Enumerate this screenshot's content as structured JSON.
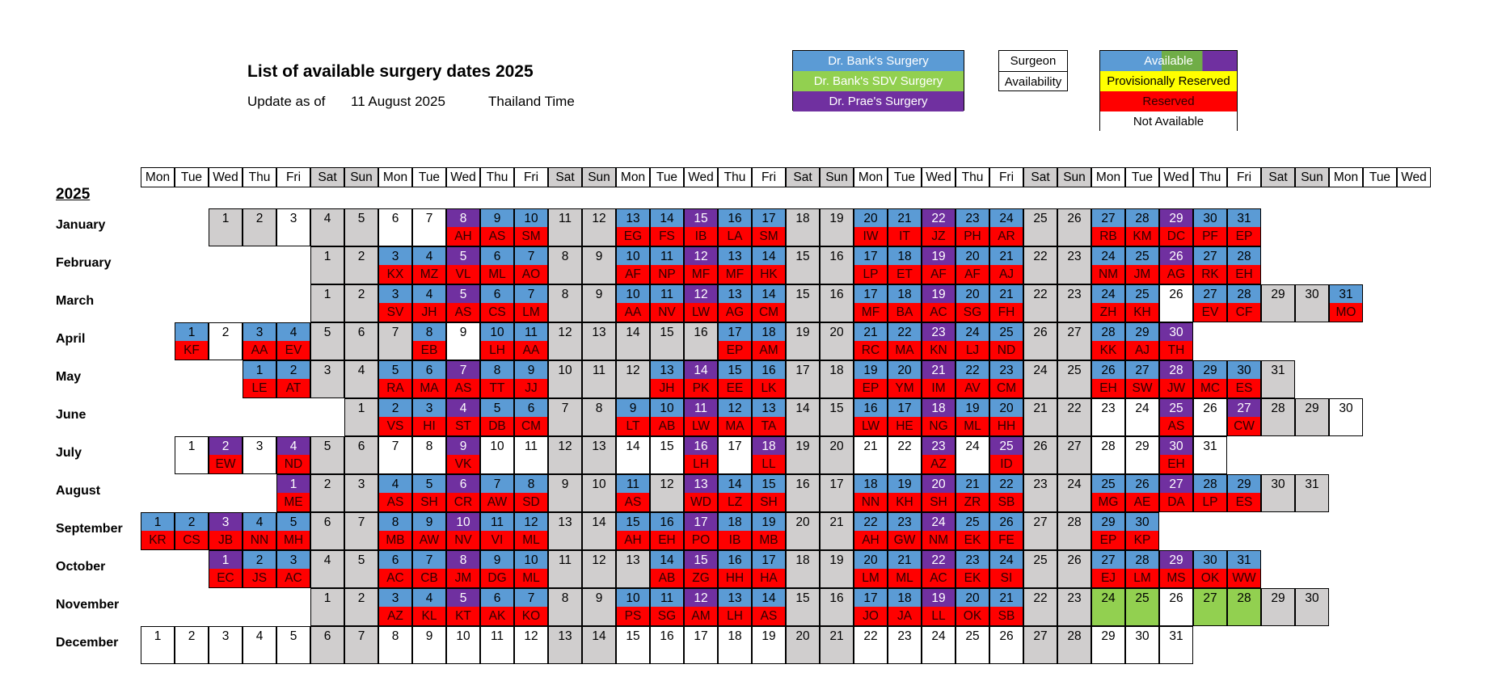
{
  "header": {
    "title": "List of available surgery dates 2025",
    "update_label": "Update as of",
    "update_date": "11 August 2025",
    "timezone": "Thailand Time"
  },
  "legend": {
    "surgeons": [
      "Dr. Bank's Surgery",
      "Dr. Bank's SDV Surgery",
      "Dr. Prae's Surgery"
    ],
    "surgeon_label": "Surgeon",
    "availability_label": "Availability",
    "status": [
      "Available",
      "Provisionally Reserved",
      "Reserved",
      "Not Available"
    ]
  },
  "colors": {
    "bank": "#5b9bd5",
    "sdv": "#92d050",
    "prae": "#7030a0",
    "reserved": "#ff0000",
    "provisional": "#ffff00",
    "not_available": "#d0cece"
  },
  "year": "2025",
  "weekday_header": [
    "Mon",
    "Tue",
    "Wed",
    "Thu",
    "Fri",
    "Sat",
    "Sun",
    "Mon",
    "Tue",
    "Wed",
    "Thu",
    "Fri",
    "Sat",
    "Sun",
    "Mon",
    "Tue",
    "Wed",
    "Thu",
    "Fri",
    "Sat",
    "Sun",
    "Mon",
    "Tue",
    "Wed",
    "Thu",
    "Fri",
    "Sat",
    "Sun",
    "Mon",
    "Tue",
    "Wed",
    "Thu",
    "Fri",
    "Sat",
    "Sun",
    "Mon",
    "Tue",
    "Wed"
  ],
  "months": [
    {
      "name": "January",
      "start": 2,
      "days": 31,
      "surgeon": {
        "8": "P",
        "9": "B",
        "10": "B",
        "13": "B",
        "14": "B",
        "15": "P",
        "16": "B",
        "17": "B",
        "20": "B",
        "21": "B",
        "22": "P",
        "23": "B",
        "24": "B",
        "27": "B",
        "28": "B",
        "29": "P",
        "30": "B",
        "31": "B"
      },
      "bookings": {
        "8": "AH",
        "9": "AS",
        "10": "SM",
        "13": "EG",
        "14": "FS",
        "15": "IB",
        "16": "LA",
        "17": "SM",
        "20": "IW",
        "21": "IT",
        "22": "JZ",
        "23": "PH",
        "24": "AR",
        "27": "RB",
        "28": "KM",
        "29": "DC",
        "30": "PF",
        "31": "EP"
      },
      "grey": [
        1,
        2,
        4,
        5,
        11,
        12,
        18,
        19,
        25,
        26
      ]
    },
    {
      "name": "February",
      "start": 5,
      "days": 28,
      "surgeon": {
        "3": "B",
        "4": "B",
        "5": "P",
        "6": "B",
        "7": "B",
        "10": "B",
        "11": "B",
        "12": "P",
        "13": "B",
        "14": "B",
        "17": "B",
        "18": "B",
        "19": "P",
        "20": "B",
        "21": "B",
        "24": "B",
        "25": "B",
        "26": "P",
        "27": "B",
        "28": "B"
      },
      "bookings": {
        "3": "KX",
        "4": "MZ",
        "5": "VL",
        "6": "ML",
        "7": "AO",
        "10": "AF",
        "11": "NP",
        "12": "MF",
        "13": "MF",
        "14": "HK",
        "17": "LP",
        "18": "ET",
        "19": "AF",
        "20": "AF",
        "21": "AJ",
        "24": "NM",
        "25": "JM",
        "26": "AG",
        "27": "RK",
        "28": "EH"
      },
      "grey": [
        1,
        2,
        8,
        9,
        15,
        16,
        22,
        23
      ]
    },
    {
      "name": "March",
      "start": 5,
      "days": 31,
      "surgeon": {
        "3": "B",
        "4": "B",
        "5": "P",
        "6": "B",
        "7": "B",
        "10": "B",
        "11": "B",
        "12": "P",
        "13": "B",
        "14": "B",
        "17": "B",
        "18": "B",
        "19": "P",
        "20": "B",
        "21": "B",
        "24": "B",
        "25": "B",
        "27": "B",
        "28": "B",
        "31": "B"
      },
      "bookings": {
        "3": "SV",
        "4": "JH",
        "5": "AS",
        "6": "CS",
        "7": "LM",
        "10": "AA",
        "11": "NV",
        "12": "LW",
        "13": "AG",
        "14": "CM",
        "17": "MF",
        "18": "BA",
        "19": "AC",
        "20": "SG",
        "21": "FH",
        "24": "ZH",
        "25": "KH",
        "27": "EV",
        "28": "CF",
        "31": "MO"
      },
      "grey": [
        1,
        2,
        8,
        9,
        15,
        16,
        22,
        23,
        29,
        30
      ]
    },
    {
      "name": "April",
      "start": 1,
      "days": 30,
      "surgeon": {
        "1": "B",
        "3": "B",
        "4": "B",
        "8": "B",
        "10": "B",
        "11": "B",
        "17": "B",
        "18": "B",
        "21": "B",
        "22": "B",
        "23": "P",
        "24": "B",
        "25": "B",
        "28": "B",
        "29": "B",
        "30": "P"
      },
      "bookings": {
        "1": "KF",
        "3": "AA",
        "4": "EV",
        "8": "EB",
        "10": "LH",
        "11": "AA",
        "17": "EP",
        "18": "AM",
        "21": "RC",
        "22": "MA",
        "23": "KN",
        "24": "LJ",
        "25": "ND",
        "28": "KK",
        "29": "AJ",
        "30": "TH"
      },
      "grey": [
        5,
        6,
        7,
        12,
        13,
        14,
        15,
        16,
        19,
        20,
        26,
        27
      ]
    },
    {
      "name": "May",
      "start": 3,
      "days": 31,
      "surgeon": {
        "1": "B",
        "2": "B",
        "5": "B",
        "6": "B",
        "7": "P",
        "8": "B",
        "9": "B",
        "13": "B",
        "14": "P",
        "15": "B",
        "16": "B",
        "19": "B",
        "20": "B",
        "21": "P",
        "22": "B",
        "23": "B",
        "26": "B",
        "27": "B",
        "28": "P",
        "29": "B",
        "30": "B"
      },
      "bookings": {
        "1": "LE",
        "2": "AT",
        "5": "RA",
        "6": "MA",
        "7": "AS",
        "8": "TT",
        "9": "JJ",
        "13": "JH",
        "14": "PK",
        "15": "EE",
        "16": "LK",
        "19": "EP",
        "20": "YM",
        "21": "IM",
        "22": "AV",
        "23": "CM",
        "26": "EH",
        "27": "SW",
        "28": "JW",
        "29": "MC",
        "30": "ES"
      },
      "grey": [
        3,
        4,
        10,
        11,
        12,
        17,
        18,
        24,
        25,
        31
      ]
    },
    {
      "name": "June",
      "start": 6,
      "days": 30,
      "surgeon": {
        "2": "B",
        "3": "B",
        "4": "P",
        "5": "B",
        "6": "B",
        "9": "B",
        "10": "B",
        "11": "P",
        "12": "B",
        "13": "B",
        "16": "B",
        "17": "B",
        "18": "P",
        "19": "B",
        "20": "B",
        "25": "P",
        "27": "P"
      },
      "bookings": {
        "2": "VS",
        "3": "HI",
        "4": "ST",
        "5": "DB",
        "6": "CM",
        "9": "LT",
        "10": "AB",
        "11": "LW",
        "12": "MA",
        "13": "TA",
        "16": "LW",
        "17": "HE",
        "18": "NG",
        "19": "ML",
        "20": "HH",
        "25": "AS",
        "27": "CW"
      },
      "grey": [
        1,
        7,
        8,
        14,
        15,
        21,
        22,
        28,
        29
      ]
    },
    {
      "name": "July",
      "start": 1,
      "days": 31,
      "surgeon": {
        "2": "P",
        "4": "P",
        "9": "P",
        "16": "P",
        "18": "P",
        "23": "P",
        "25": "P",
        "30": "P"
      },
      "bookings": {
        "2": "EW",
        "4": "ND",
        "9": "VK",
        "16": "LH",
        "18": "LL",
        "23": "AZ",
        "25": "ID",
        "30": "EH"
      },
      "grey": [
        5,
        6,
        12,
        13,
        19,
        20,
        26,
        27
      ]
    },
    {
      "name": "August",
      "start": 4,
      "days": 31,
      "surgeon": {
        "1": "P",
        "4": "B",
        "5": "B",
        "6": "P",
        "7": "B",
        "8": "B",
        "11": "B",
        "13": "P",
        "14": "B",
        "15": "B",
        "18": "B",
        "19": "B",
        "20": "P",
        "21": "B",
        "22": "B",
        "25": "B",
        "26": "B",
        "27": "P",
        "28": "B",
        "29": "B"
      },
      "bookings": {
        "1": "ME",
        "4": "AS",
        "5": "SH",
        "6": "CR",
        "7": "AW",
        "8": "SD",
        "11": "AS",
        "13": "WD",
        "14": "LZ",
        "15": "SH",
        "18": "NN",
        "19": "KH",
        "20": "SH",
        "21": "ZR",
        "22": "SB",
        "25": "MG",
        "26": "AE",
        "27": "DA",
        "28": "LP",
        "29": "ES"
      },
      "grey": [
        2,
        3,
        9,
        10,
        12,
        16,
        17,
        23,
        24,
        30,
        31
      ]
    },
    {
      "name": "September",
      "start": 0,
      "days": 30,
      "surgeon": {
        "1": "B",
        "2": "B",
        "3": "P",
        "4": "B",
        "5": "B",
        "8": "B",
        "9": "B",
        "10": "P",
        "11": "B",
        "12": "B",
        "15": "B",
        "16": "B",
        "17": "P",
        "18": "B",
        "19": "B",
        "22": "B",
        "23": "B",
        "24": "P",
        "25": "B",
        "26": "B",
        "29": "B",
        "30": "B"
      },
      "bookings": {
        "1": "KR",
        "2": "CS",
        "3": "JB",
        "4": "NN",
        "5": "MH",
        "8": "MB",
        "9": "AW",
        "10": "NV",
        "11": "VI",
        "12": "ML",
        "15": "AH",
        "16": "EH",
        "17": "PO",
        "18": "IB",
        "19": "MB",
        "22": "AH",
        "23": "GW",
        "24": "NM",
        "25": "EK",
        "26": "FE",
        "29": "EP",
        "30": "KP"
      },
      "grey": [
        6,
        7,
        13,
        14,
        20,
        21,
        27,
        28
      ]
    },
    {
      "name": "October",
      "start": 2,
      "days": 31,
      "surgeon": {
        "1": "P",
        "2": "B",
        "3": "B",
        "6": "B",
        "7": "B",
        "8": "P",
        "9": "B",
        "10": "B",
        "14": "B",
        "15": "P",
        "16": "B",
        "17": "B",
        "20": "B",
        "21": "B",
        "22": "P",
        "23": "B",
        "24": "B",
        "27": "B",
        "28": "B",
        "29": "P",
        "30": "B",
        "31": "B"
      },
      "bookings": {
        "1": "EC",
        "2": "JS",
        "3": "AC",
        "6": "AC",
        "7": "CB",
        "8": "JM",
        "9": "DG",
        "10": "ML",
        "14": "AB",
        "15": "ZG",
        "16": "HH",
        "17": "HA",
        "20": "LM",
        "21": "ML",
        "22": "AC",
        "23": "EK",
        "24": "SI",
        "27": "EJ",
        "28": "LM",
        "29": "MS",
        "30": "OK",
        "31": "WW"
      },
      "grey": [
        4,
        5,
        11,
        12,
        13,
        18,
        19,
        25,
        26
      ]
    },
    {
      "name": "November",
      "start": 5,
      "days": 30,
      "surgeon": {
        "3": "B",
        "4": "B",
        "5": "P",
        "6": "B",
        "7": "B",
        "10": "B",
        "11": "B",
        "12": "P",
        "13": "B",
        "14": "B",
        "17": "B",
        "18": "B",
        "19": "P",
        "20": "B",
        "21": "B"
      },
      "bookings": {
        "3": "AZ",
        "4": "KL",
        "5": "KT",
        "6": "AK",
        "7": "KO",
        "10": "PS",
        "11": "SG",
        "12": "AM",
        "13": "LH",
        "14": "AS",
        "17": "JO",
        "18": "JA",
        "19": "LL",
        "20": "OK",
        "21": "SB"
      },
      "sdv": [
        24,
        25,
        27,
        28
      ],
      "grey": [
        1,
        2,
        8,
        9,
        15,
        16,
        22,
        23,
        29,
        30
      ]
    },
    {
      "name": "December",
      "start": 0,
      "days": 31,
      "surgeon": {},
      "bookings": {},
      "grey": [
        6,
        7,
        13,
        14,
        20,
        21,
        27,
        28
      ]
    }
  ]
}
